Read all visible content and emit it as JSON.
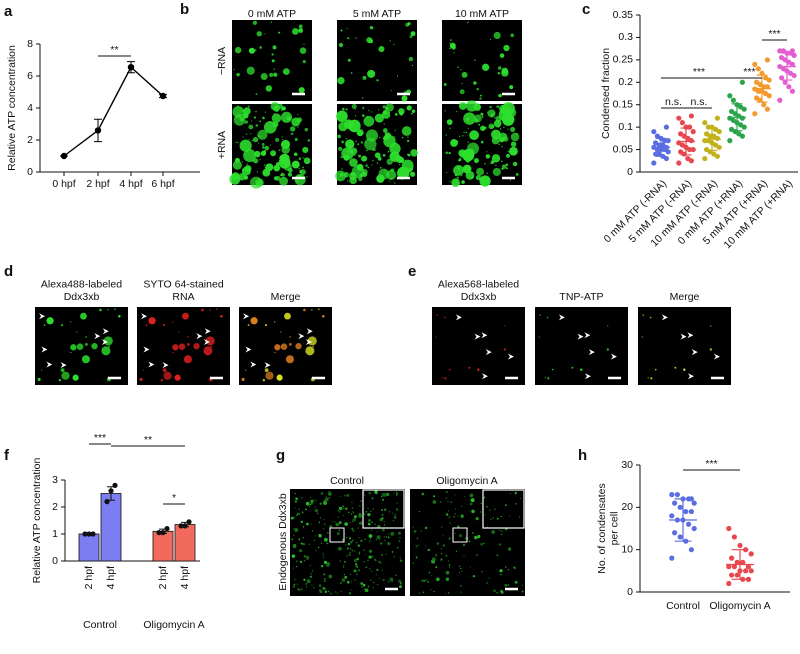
{
  "panel_labels": [
    "a",
    "b",
    "c",
    "d",
    "e",
    "f",
    "g",
    "h"
  ],
  "chart_data": [
    {
      "type": "line",
      "ylabel": "Relative ATP concentration",
      "categories": [
        "0 hpf",
        "2 hpf",
        "4 hpf",
        "6 hpf"
      ],
      "values": [
        1,
        2.6,
        6.55,
        4.75
      ],
      "errors": [
        0,
        0.7,
        0.35,
        0.1
      ],
      "color": "#000000",
      "ylim": [
        0,
        8
      ],
      "yticks": [
        0,
        2,
        4,
        6,
        8
      ],
      "significance": [
        {
          "text": "**",
          "between": [
            1,
            2
          ]
        }
      ]
    },
    {
      "type": "strip",
      "ylabel": "Condensed fraction",
      "categories": [
        "0 mM ATP (-RNA)",
        "5 mM ATP (-RNA)",
        "10 mM ATP (-RNA)",
        "0 mM ATP (+RNA)",
        "5 mM ATP (+RNA)",
        "10 mM ATP (+RNA)"
      ],
      "colors": [
        "#5b6ee1",
        "#e8474f",
        "#c2b21a",
        "#2aa64a",
        "#f39a2c",
        "#e35fd0"
      ],
      "values": [
        [
          0.02,
          0.03,
          0.035,
          0.04,
          0.04,
          0.045,
          0.05,
          0.05,
          0.05,
          0.055,
          0.055,
          0.06,
          0.06,
          0.065,
          0.07,
          0.07,
          0.075,
          0.08,
          0.09,
          0.1
        ],
        [
          0.02,
          0.025,
          0.03,
          0.04,
          0.045,
          0.05,
          0.05,
          0.055,
          0.06,
          0.065,
          0.07,
          0.075,
          0.08,
          0.085,
          0.09,
          0.1,
          0.1,
          0.11,
          0.12,
          0.125
        ],
        [
          0.03,
          0.035,
          0.04,
          0.045,
          0.05,
          0.055,
          0.06,
          0.065,
          0.07,
          0.07,
          0.075,
          0.08,
          0.08,
          0.085,
          0.09,
          0.095,
          0.1,
          0.1,
          0.11,
          0.12
        ],
        [
          0.07,
          0.08,
          0.085,
          0.09,
          0.095,
          0.1,
          0.105,
          0.11,
          0.115,
          0.12,
          0.12,
          0.125,
          0.13,
          0.135,
          0.14,
          0.145,
          0.15,
          0.16,
          0.17,
          0.2
        ],
        [
          0.13,
          0.14,
          0.15,
          0.16,
          0.165,
          0.17,
          0.175,
          0.18,
          0.18,
          0.185,
          0.19,
          0.19,
          0.195,
          0.2,
          0.205,
          0.21,
          0.22,
          0.23,
          0.24,
          0.25
        ],
        [
          0.16,
          0.18,
          0.19,
          0.2,
          0.21,
          0.215,
          0.22,
          0.225,
          0.23,
          0.235,
          0.24,
          0.245,
          0.25,
          0.255,
          0.26,
          0.265,
          0.265,
          0.27,
          0.27,
          0.27
        ]
      ],
      "mean": [
        0.055,
        0.068,
        0.073,
        0.122,
        0.186,
        0.235
      ],
      "sd": [
        0.02,
        0.03,
        0.025,
        0.03,
        0.03,
        0.03
      ],
      "ylim": [
        0,
        0.35
      ],
      "yticks": [
        0,
        0.05,
        0.1,
        0.15,
        0.2,
        0.25,
        0.3,
        0.35
      ],
      "significance": [
        {
          "text": "n.s.",
          "between": [
            0,
            1
          ]
        },
        {
          "text": "n.s.",
          "between": [
            1,
            2
          ]
        },
        {
          "text": "***",
          "between": [
            0,
            3
          ]
        },
        {
          "text": "***",
          "between": [
            3,
            4
          ]
        },
        {
          "text": "***",
          "between": [
            4,
            5
          ]
        }
      ]
    },
    {
      "type": "bar",
      "ylabel": "Relative ATP concentration",
      "categories": [
        "2 hpf",
        "4 hpf"
      ],
      "series": [
        {
          "name": "Control",
          "color": "#7b7ef0",
          "values": [
            1,
            2.5
          ],
          "errors": [
            0,
            0.25
          ],
          "points": [
            [
              1,
              1,
              1
            ],
            [
              2.2,
              2.6,
              2.8
            ]
          ]
        },
        {
          "name": "Oligomycin A",
          "color": "#f26a5e",
          "values": [
            1.1,
            1.35
          ],
          "errors": [
            0.08,
            0.08
          ],
          "points": [
            [
              1.05,
              1.05,
              1.2
            ],
            [
              1.3,
              1.3,
              1.45
            ]
          ]
        }
      ],
      "ylim": [
        0,
        3
      ],
      "yticks": [
        0,
        1,
        2,
        3
      ],
      "significance": [
        {
          "text": "***",
          "between": [
            [
              0,
              0
            ],
            [
              0,
              1
            ]
          ]
        },
        {
          "text": "**",
          "between": [
            [
              0,
              1
            ],
            [
              1,
              1
            ]
          ]
        },
        {
          "text": "*",
          "between": [
            [
              1,
              0
            ],
            [
              1,
              1
            ]
          ]
        }
      ]
    },
    {
      "type": "strip",
      "ylabel": "No. of condensates per cell",
      "categories": [
        "Control",
        "Oligomycin A"
      ],
      "colors": [
        "#5b6ee1",
        "#e8474f"
      ],
      "values": [
        [
          8,
          10,
          12,
          13,
          14,
          15,
          16,
          17,
          17,
          18,
          19,
          19,
          20,
          21,
          21,
          22,
          22,
          23,
          23,
          22
        ],
        [
          2,
          3,
          3,
          4,
          4,
          5,
          5,
          5,
          6,
          6,
          6,
          7,
          7,
          8,
          9,
          10,
          11,
          13,
          15,
          3
        ]
      ],
      "mean": [
        17,
        6.5
      ],
      "sd": [
        5,
        3.5
      ],
      "ylim": [
        0,
        30
      ],
      "yticks": [
        0,
        10,
        20,
        30
      ],
      "significance": [
        {
          "text": "***",
          "between": [
            0,
            1
          ]
        }
      ]
    }
  ],
  "images": {
    "b": {
      "columns": [
        "0 mM ATP",
        "5 mM ATP",
        "10 mM ATP"
      ],
      "rows": [
        "−RNA",
        "+RNA"
      ]
    },
    "d": {
      "columns": [
        "Alexa488-labeled Ddx3xb",
        "SYTO 64-stained RNA",
        "Merge"
      ]
    },
    "e": {
      "columns": [
        "Alexa568-labeled Ddx3xb",
        "TNP-ATP",
        "Merge"
      ]
    },
    "g": {
      "label": "Endogenous Ddx3xb",
      "columns": [
        "Control",
        "Oligomycin A"
      ]
    }
  }
}
